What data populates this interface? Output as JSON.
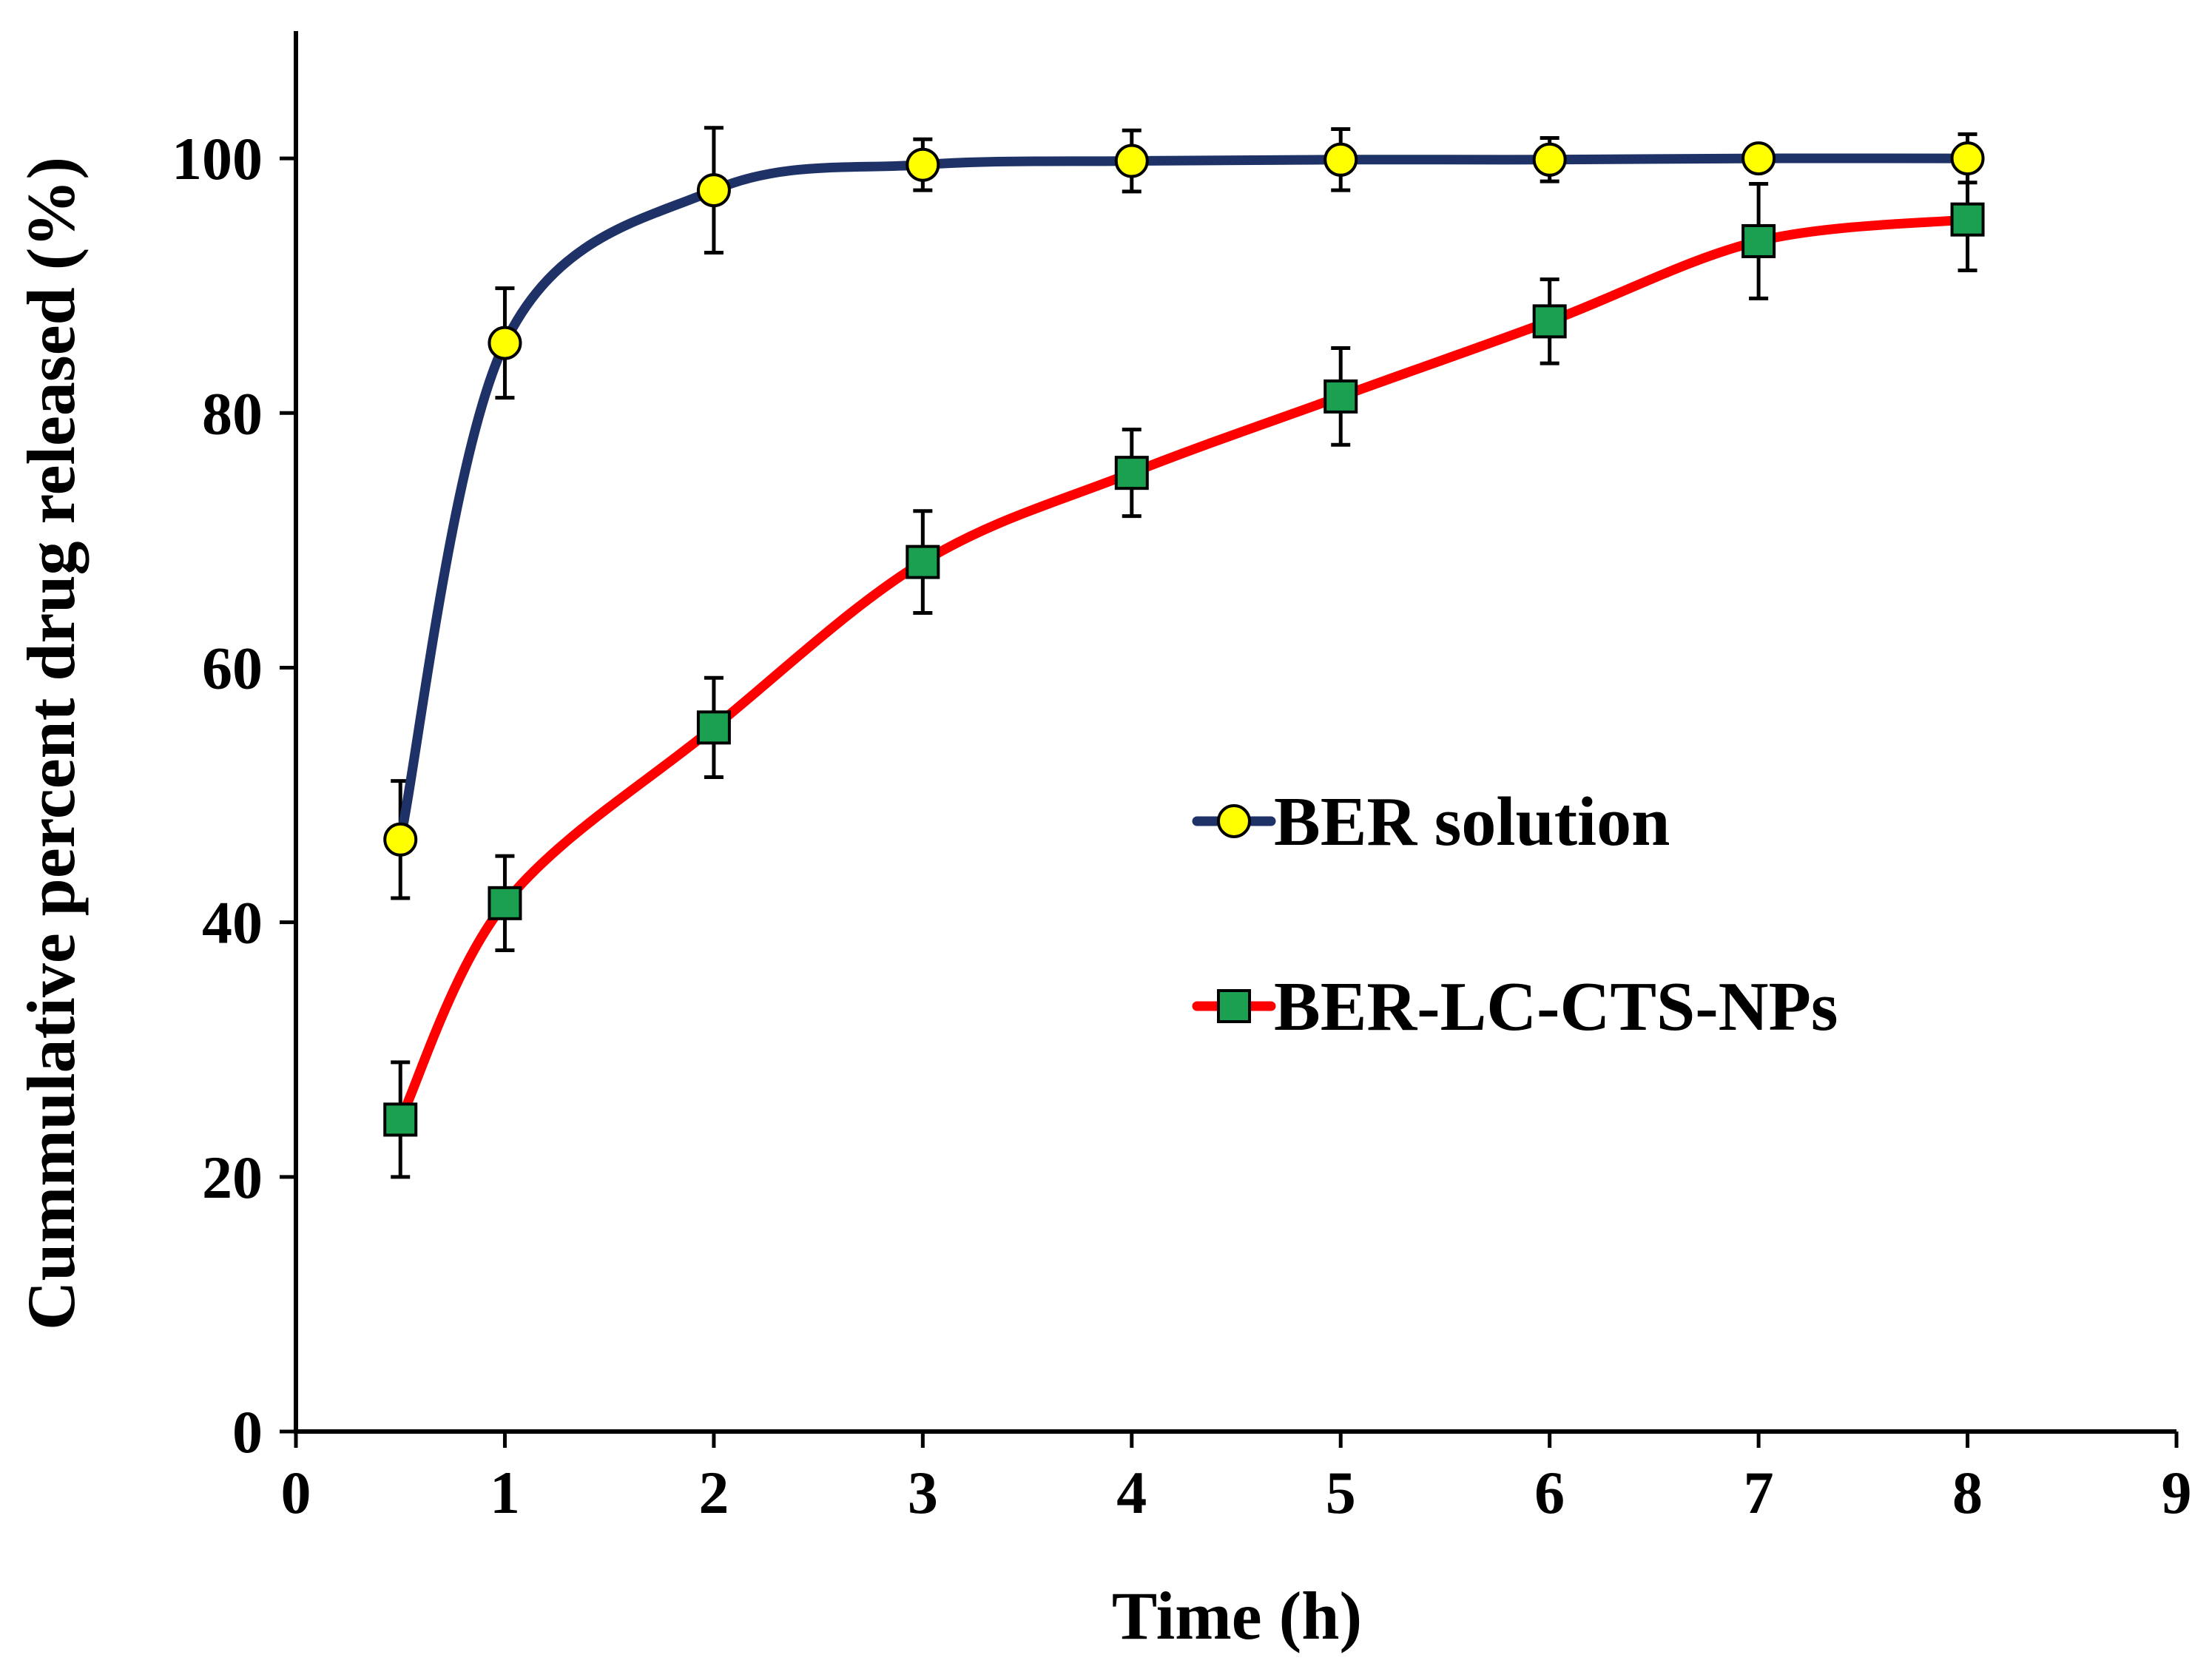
{
  "chart_data": {
    "type": "line",
    "title": "",
    "xlabel": "Time (h)",
    "ylabel": "Cummulative percent drug released (%)",
    "xlim": [
      0,
      9
    ],
    "ylim": [
      0,
      110
    ],
    "xticks": [
      0,
      1,
      2,
      3,
      4,
      5,
      6,
      7,
      8,
      9
    ],
    "yticks": [
      0,
      20,
      40,
      60,
      80,
      100
    ],
    "xtick_labels": [
      "0",
      "1",
      "2",
      "3",
      "4",
      "5",
      "6",
      "7",
      "8",
      "9"
    ],
    "ytick_labels": [
      "0",
      "20",
      "40",
      "60",
      "80",
      "100"
    ],
    "grid": false,
    "legend_position": "center-right",
    "series": [
      {
        "name": "BER solution",
        "marker": "circle",
        "line_color": "#1f3268",
        "marker_fill": "#ffff00",
        "x": [
          0.5,
          1,
          2,
          3,
          4,
          5,
          6,
          7,
          8
        ],
        "y": [
          46.5,
          85.5,
          97.5,
          99.5,
          99.8,
          99.9,
          99.9,
          100,
          100
        ],
        "error": [
          4.6,
          4.3,
          4.9,
          2.0,
          2.4,
          2.4,
          1.7,
          0.5,
          1.9
        ]
      },
      {
        "name": "BER-LC-CTS-NPs",
        "marker": "square",
        "line_color": "#ff0000",
        "marker_fill": "#1aa050",
        "x": [
          0.5,
          1,
          2,
          3,
          4,
          5,
          6,
          7,
          8
        ],
        "y": [
          24.5,
          41.5,
          55.3,
          68.3,
          75.3,
          81.3,
          87.2,
          93.5,
          95.2
        ],
        "error": [
          4.5,
          3.7,
          3.9,
          4.0,
          3.4,
          3.8,
          3.3,
          4.5,
          4.0
        ]
      }
    ]
  }
}
